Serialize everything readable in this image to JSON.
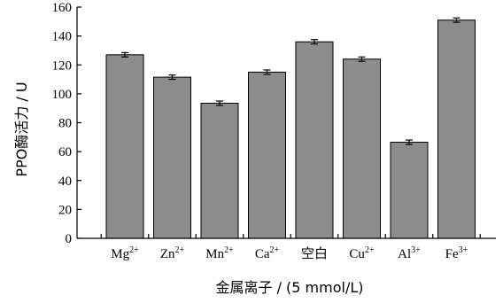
{
  "chart_data": {
    "type": "bar",
    "xlabel": "金属离子 / (5 mmol/L)",
    "ylabel": "PPO酶活力 / U",
    "ylim": [
      0,
      160
    ],
    "yticks": [
      0,
      20,
      40,
      60,
      80,
      100,
      120,
      140,
      160
    ],
    "grid": false,
    "bar_color": "#8c8c8c",
    "categories": [
      {
        "base": "Mg",
        "sup": "2+"
      },
      {
        "base": "Zn",
        "sup": "2+"
      },
      {
        "base": "Mn",
        "sup": "2+"
      },
      {
        "base": "Ca",
        "sup": "2+"
      },
      {
        "base": "空白",
        "sup": ""
      },
      {
        "base": "Cu",
        "sup": "2+"
      },
      {
        "base": "Al",
        "sup": "3+"
      },
      {
        "base": "Fe",
        "sup": "3+"
      }
    ],
    "values": [
      127,
      111.5,
      93.5,
      115,
      136,
      124,
      66.5,
      151
    ],
    "errors": [
      1.5,
      1.5,
      1.5,
      1.5,
      1.5,
      1.5,
      1.5,
      1.5
    ]
  }
}
